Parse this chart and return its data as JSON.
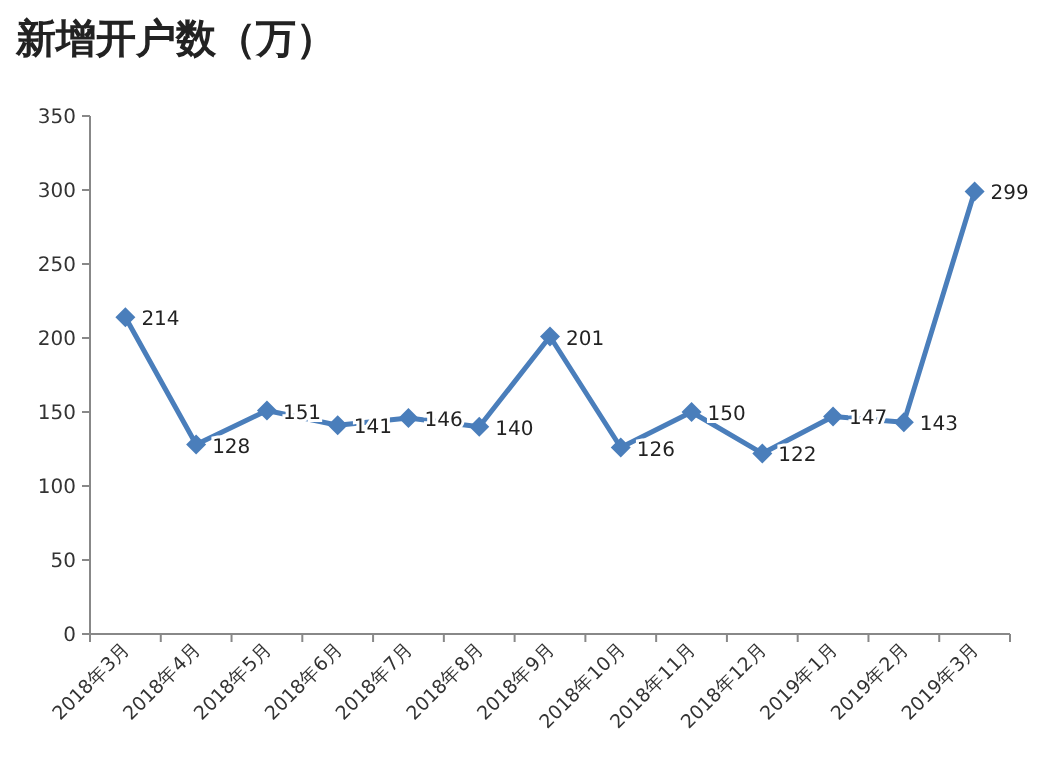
{
  "chart_data": {
    "type": "line",
    "title": "新增开户数（万）",
    "categories": [
      "2018年3月",
      "2018年4月",
      "2018年5月",
      "2018年6月",
      "2018年7月",
      "2018年8月",
      "2018年9月",
      "2018年10月",
      "2018年11月",
      "2018年12月",
      "2019年1月",
      "2019年2月",
      "2019年3月"
    ],
    "values": [
      214,
      128,
      151,
      141,
      146,
      140,
      201,
      126,
      150,
      122,
      147,
      143,
      299
    ],
    "color": "#4a7ebb",
    "ylim": [
      0,
      350
    ],
    "yticks": [
      0,
      50,
      100,
      150,
      200,
      250,
      300,
      350
    ],
    "data_labels": true,
    "marker": "diamond",
    "grid": false
  }
}
